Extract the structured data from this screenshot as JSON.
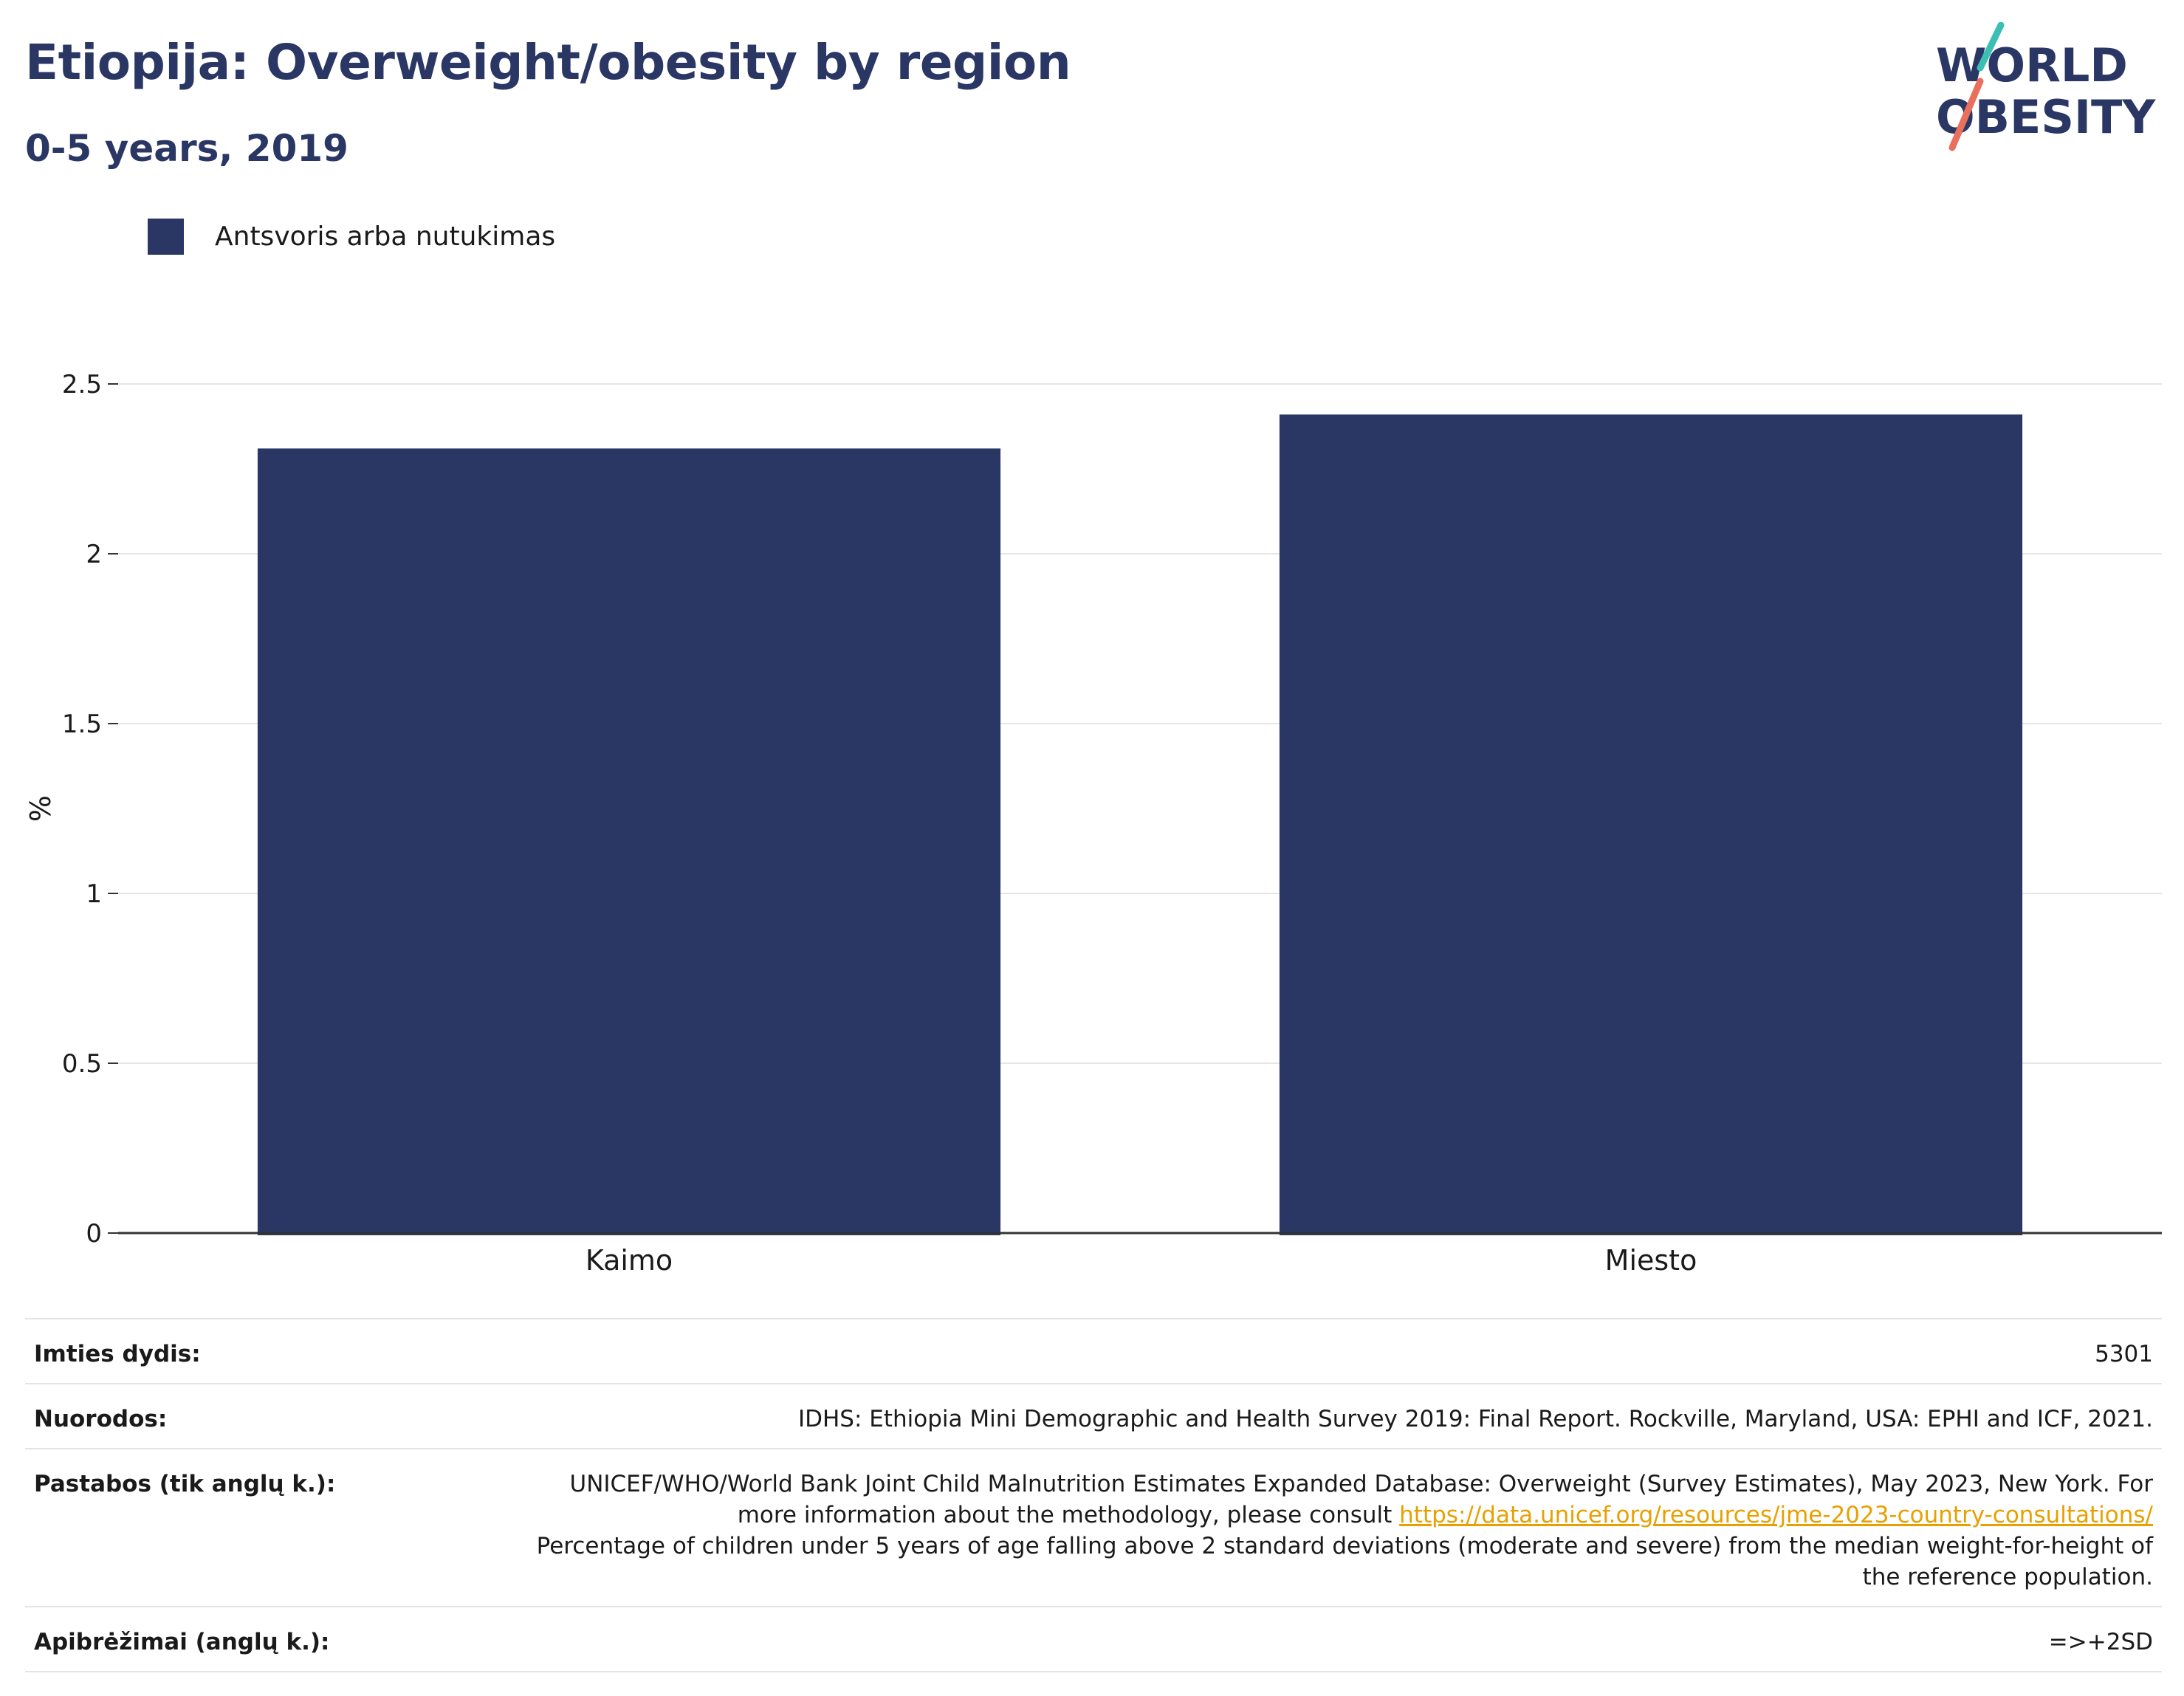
{
  "header": {
    "title": "Etiopija: Overweight/obesity by region",
    "subtitle": "0-5 years, 2019"
  },
  "logo": {
    "line1": "WORLD",
    "line2": "OBESITY"
  },
  "legend": {
    "label": "Antsvoris arba nutukimas"
  },
  "colors": {
    "bar": "#2a3764",
    "title": "#2a3764",
    "link": "#e8a000",
    "logo_teal": "#3bbfb3",
    "logo_coral": "#e8705d"
  },
  "chart_data": {
    "type": "bar",
    "categories": [
      "Kaimo",
      "Miesto"
    ],
    "series": [
      {
        "name": "Antsvoris arba nutukimas",
        "values": [
          2.31,
          2.41
        ]
      }
    ],
    "ylabel": "%",
    "xlabel": "",
    "ylim": [
      0,
      2.5
    ],
    "yticks": [
      0,
      0.5,
      1,
      1.5,
      2,
      2.5
    ],
    "ytick_labels": [
      "0",
      "0.5",
      "1",
      "1.5",
      "2",
      "2.5"
    ],
    "grid": true,
    "legend_position": "top-left"
  },
  "footer": {
    "sample_label": "Imties dydis:",
    "sample_value": "5301",
    "refs_label": "Nuorodos:",
    "refs_value": "IDHS: Ethiopia Mini Demographic and Health Survey 2019: Final Report. Rockville, Maryland, USA: EPHI and ICF, 2021.",
    "notes_label": "Pastabos (tik anglų k.):",
    "notes_text1": "UNICEF/WHO/World Bank Joint Child Malnutrition Estimates Expanded Database: Overweight (Survey Estimates), May 2023, New York. For more information about the methodology, please consult ",
    "notes_link": "https://data.unicef.org/resources/jme-2023-country-consultations/",
    "notes_text2": "Percentage of children under 5 years of age falling above 2 standard deviations (moderate and severe) from the median weight-for-height of the reference population.",
    "defs_label": "Apibrėžimai (anglų k.):",
    "defs_value": "=>+2SD"
  }
}
